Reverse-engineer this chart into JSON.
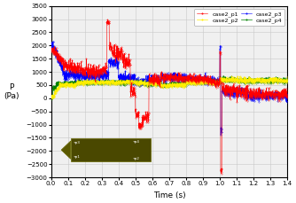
{
  "title": "",
  "xlabel": "Time (s)",
  "ylabel": "P\n(Pa)",
  "xlim": [
    0.0,
    1.4
  ],
  "ylim": [
    -3000,
    3500
  ],
  "yticks": [
    -3000,
    -2500,
    -2000,
    -1500,
    -1000,
    -500,
    0,
    500,
    1000,
    1500,
    2000,
    2500,
    3000,
    3500
  ],
  "xticks": [
    0.0,
    0.1,
    0.2,
    0.3,
    0.4,
    0.5,
    0.6,
    0.7,
    0.8,
    0.9,
    1.0,
    1.1,
    1.2,
    1.3,
    1.4
  ],
  "legend_labels": [
    "case2_p1",
    "case2_p2",
    "case2_p3",
    "case2_p4"
  ],
  "colors": {
    "p1": "#FF0000",
    "p2": "#FFEE00",
    "p3": "#0000FF",
    "p4": "#008000"
  },
  "seed": 42,
  "background_color": "#f0f0f0",
  "grid_color": "#c8c8c8",
  "inset": {
    "bg_color": "#1010ee",
    "pipe_color": "#4a4800",
    "arrow_color": "#5a5800"
  }
}
